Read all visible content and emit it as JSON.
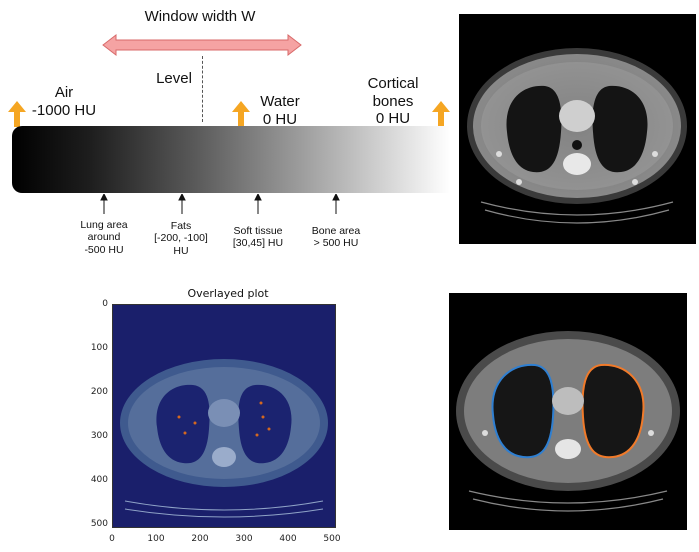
{
  "diagram": {
    "window_width_label": "Window width W",
    "level_label": "Level",
    "markers": [
      {
        "name": "Air",
        "value": "-1000 HU"
      },
      {
        "name": "Water",
        "value": "0 HU"
      },
      {
        "name": "Cortical bones",
        "name_line1": "Cortical",
        "name_line2": "bones",
        "value": "0 HU"
      }
    ],
    "tissues": [
      {
        "line1": "Lung area",
        "line2": "around",
        "line3": "-500 HU"
      },
      {
        "line1": "Fats",
        "line2": "[-200, -100]",
        "line3": "HU"
      },
      {
        "line1": "Soft tissue",
        "line2": "[30,45] HU"
      },
      {
        "line1": "Bone area",
        "line2": "> 500 HU"
      }
    ]
  },
  "overlay_plot": {
    "title": "Overlayed plot",
    "x_ticks": [
      "0",
      "100",
      "200",
      "300",
      "400",
      "500"
    ],
    "y_ticks": [
      "0",
      "100",
      "200",
      "300",
      "400",
      "500"
    ]
  },
  "colors": {
    "arrow_fill": "#f5a3a3",
    "arrow_stroke": "#d86a6a",
    "marker_arrow": "#f5a623",
    "left_lung_contour": "#2f7fd1",
    "right_lung_contour": "#f07a2a",
    "overlay_tint": "#1a1f6b"
  }
}
